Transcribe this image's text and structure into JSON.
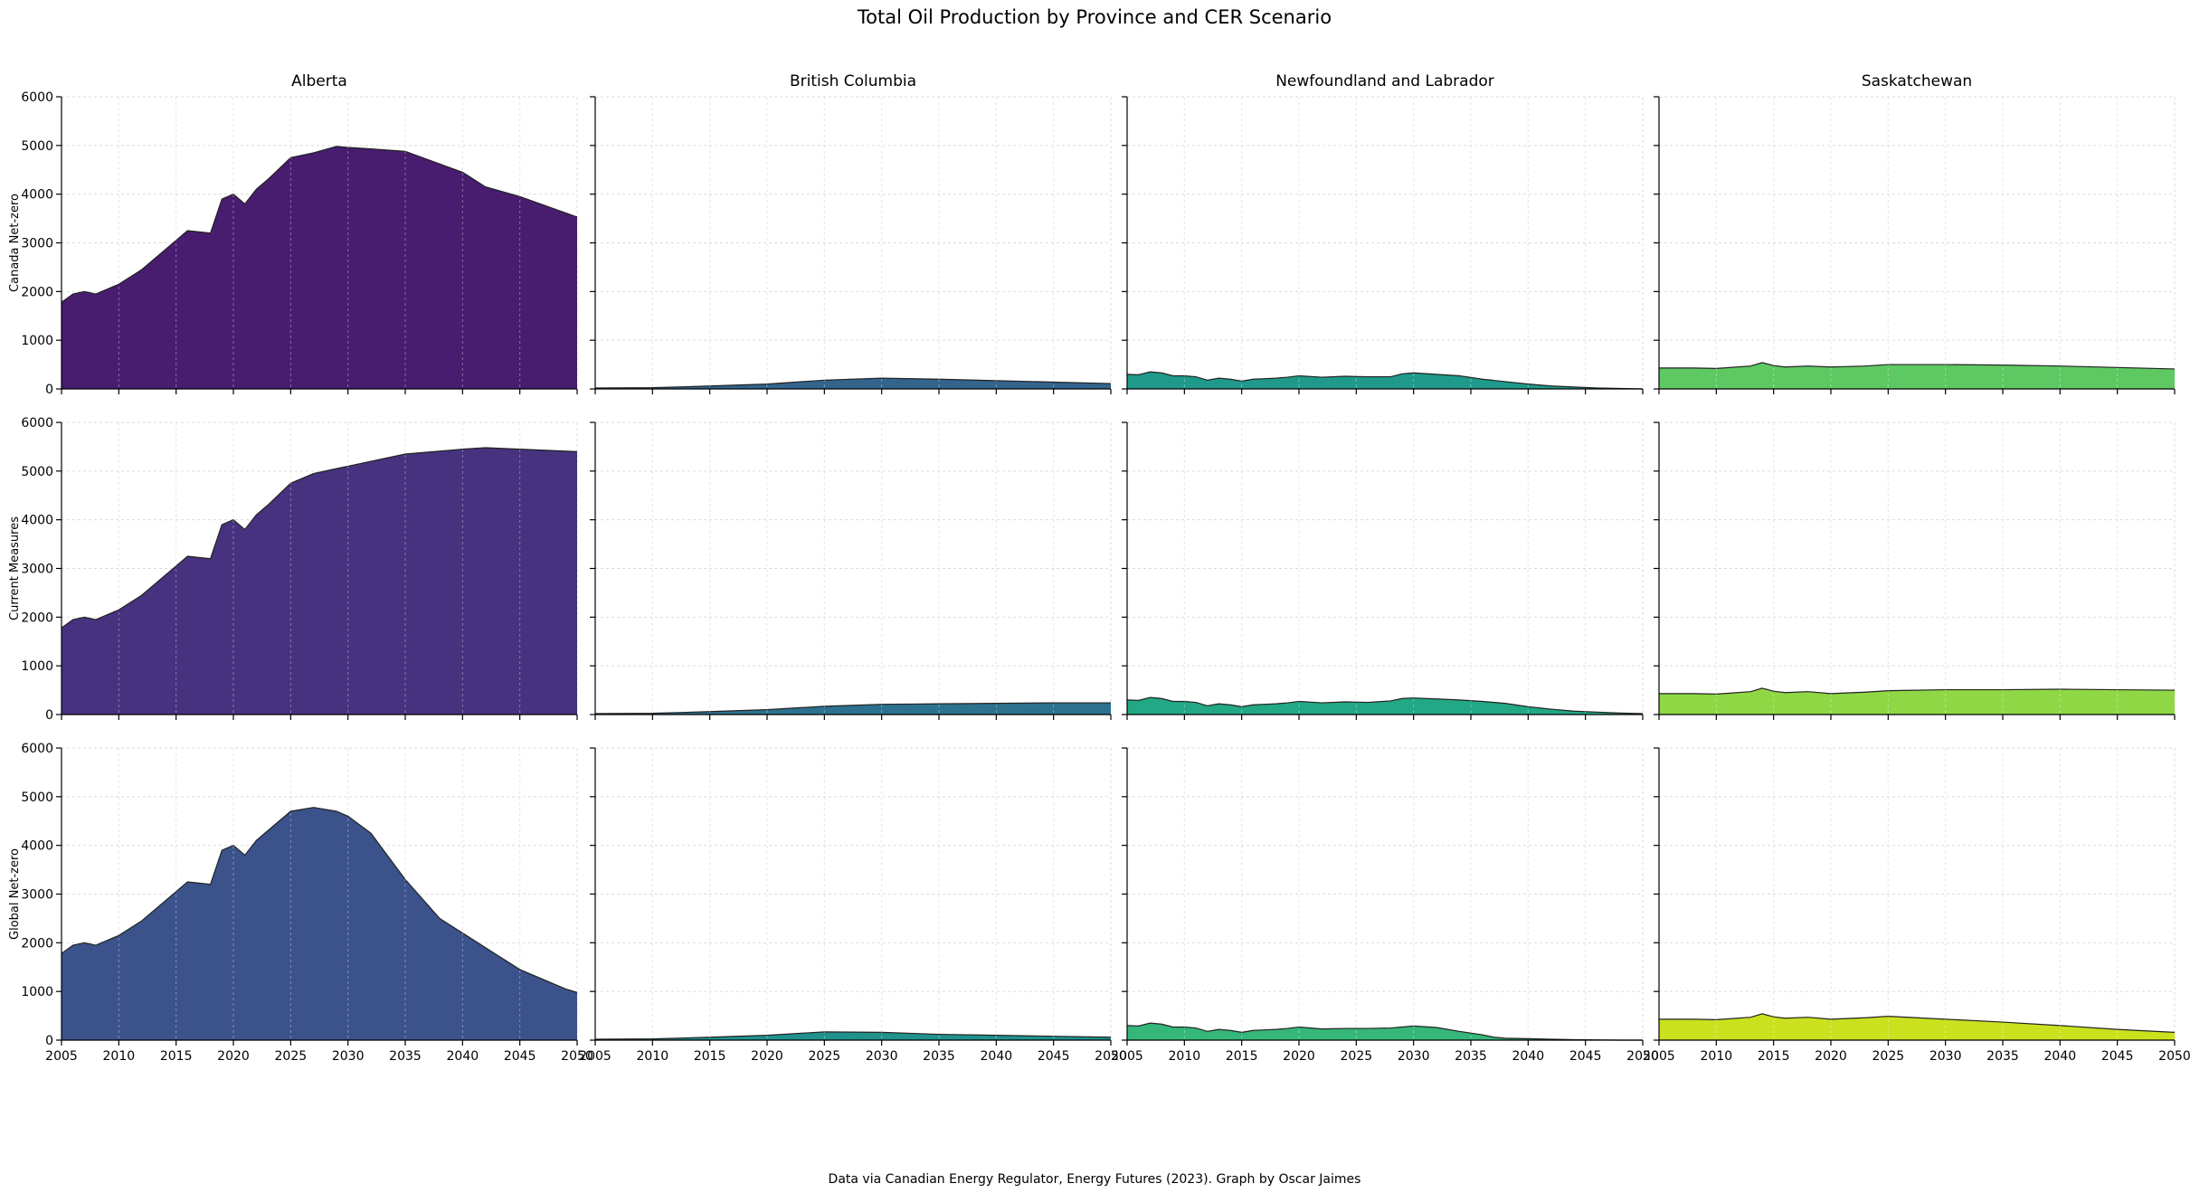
{
  "chart_data": {
    "type": "area",
    "title": "Total Oil Production by Province and CER Scenario",
    "footer": "Data via Canadian Energy Regulator, Energy Futures (2023). Graph by Oscar Jaimes",
    "columns": [
      "Alberta",
      "British Columbia",
      "Newfoundland and Labrador",
      "Saskatchewan"
    ],
    "rows": [
      "Canada Net-zero",
      "Current Measures",
      "Global Net-zero"
    ],
    "xlim": [
      2005,
      2050
    ],
    "ylim": [
      0,
      6000
    ],
    "x_ticks": [
      2005,
      2010,
      2015,
      2020,
      2025,
      2030,
      2035,
      2040,
      2045,
      2050
    ],
    "y_ticks": [
      0,
      1000,
      2000,
      3000,
      4000,
      5000,
      6000
    ],
    "grid": true,
    "colors": [
      [
        "#481c6e",
        "#32648e",
        "#1f9a8a",
        "#5ec962"
      ],
      [
        "#46327e",
        "#2c728e",
        "#22a884",
        "#8fd744"
      ],
      [
        "#3b528b",
        "#21918c",
        "#35b779",
        "#cae11f"
      ]
    ],
    "panels": [
      [
        {
          "x": [
            2005,
            2006,
            2007,
            2008,
            2010,
            2012,
            2013,
            2015,
            2016,
            2018,
            2019,
            2020,
            2021,
            2022,
            2023,
            2025,
            2027,
            2029,
            2030,
            2032,
            2035,
            2040,
            2042,
            2045,
            2050
          ],
          "y": [
            1780,
            1950,
            2000,
            1950,
            2150,
            2450,
            2650,
            3050,
            3250,
            3200,
            3900,
            4000,
            3800,
            4100,
            4300,
            4750,
            4850,
            4980,
            4960,
            4930,
            4880,
            4450,
            4150,
            3950,
            3530
          ]
        },
        {
          "x": [
            2005,
            2010,
            2015,
            2020,
            2025,
            2030,
            2035,
            2040,
            2045,
            2050
          ],
          "y": [
            20,
            25,
            60,
            100,
            180,
            220,
            200,
            170,
            140,
            110
          ]
        },
        {
          "x": [
            2005,
            2006,
            2007,
            2008,
            2009,
            2010,
            2011,
            2012,
            2013,
            2014,
            2015,
            2016,
            2017,
            2018,
            2019,
            2020,
            2022,
            2024,
            2026,
            2028,
            2029,
            2030,
            2032,
            2034,
            2036,
            2038,
            2040,
            2042,
            2044,
            2046,
            2048,
            2050
          ],
          "y": [
            300,
            290,
            350,
            330,
            270,
            270,
            250,
            180,
            220,
            200,
            160,
            200,
            210,
            220,
            240,
            270,
            240,
            260,
            250,
            250,
            310,
            330,
            300,
            270,
            200,
            150,
            100,
            60,
            40,
            20,
            10,
            0
          ]
        },
        {
          "x": [
            2005,
            2008,
            2010,
            2013,
            2014,
            2015,
            2016,
            2018,
            2020,
            2023,
            2025,
            2030,
            2035,
            2040,
            2045,
            2050
          ],
          "y": [
            430,
            430,
            420,
            470,
            540,
            480,
            450,
            470,
            450,
            470,
            500,
            500,
            490,
            470,
            440,
            410
          ]
        }
      ],
      [
        {
          "x": [
            2005,
            2006,
            2007,
            2008,
            2010,
            2012,
            2013,
            2015,
            2016,
            2018,
            2019,
            2020,
            2021,
            2022,
            2023,
            2025,
            2027,
            2029,
            2030,
            2032,
            2035,
            2040,
            2042,
            2045,
            2050
          ],
          "y": [
            1780,
            1950,
            2000,
            1950,
            2150,
            2450,
            2650,
            3050,
            3250,
            3200,
            3900,
            4000,
            3800,
            4100,
            4300,
            4750,
            4950,
            5050,
            5100,
            5200,
            5350,
            5450,
            5480,
            5450,
            5400
          ]
        },
        {
          "x": [
            2005,
            2010,
            2015,
            2020,
            2025,
            2030,
            2035,
            2040,
            2045,
            2050
          ],
          "y": [
            20,
            25,
            60,
            100,
            170,
            210,
            220,
            230,
            240,
            240
          ]
        },
        {
          "x": [
            2005,
            2006,
            2007,
            2008,
            2009,
            2010,
            2011,
            2012,
            2013,
            2014,
            2015,
            2016,
            2017,
            2018,
            2019,
            2020,
            2022,
            2024,
            2026,
            2028,
            2029,
            2030,
            2032,
            2034,
            2036,
            2038,
            2040,
            2042,
            2044,
            2046,
            2048,
            2050
          ],
          "y": [
            300,
            290,
            350,
            330,
            270,
            270,
            250,
            180,
            220,
            200,
            160,
            200,
            210,
            220,
            240,
            270,
            240,
            260,
            250,
            280,
            330,
            340,
            320,
            300,
            270,
            230,
            160,
            110,
            70,
            50,
            30,
            20
          ]
        },
        {
          "x": [
            2005,
            2008,
            2010,
            2013,
            2014,
            2015,
            2016,
            2018,
            2020,
            2023,
            2025,
            2030,
            2035,
            2040,
            2045,
            2050
          ],
          "y": [
            430,
            430,
            420,
            470,
            540,
            480,
            450,
            470,
            430,
            460,
            490,
            510,
            510,
            520,
            510,
            500
          ]
        }
      ],
      [
        {
          "x": [
            2005,
            2006,
            2007,
            2008,
            2010,
            2012,
            2013,
            2015,
            2016,
            2018,
            2019,
            2020,
            2021,
            2022,
            2023,
            2025,
            2027,
            2029,
            2030,
            2032,
            2035,
            2038,
            2040,
            2042,
            2045,
            2047,
            2049,
            2050
          ],
          "y": [
            1780,
            1950,
            2000,
            1950,
            2150,
            2450,
            2650,
            3050,
            3250,
            3200,
            3900,
            4000,
            3800,
            4100,
            4300,
            4700,
            4780,
            4700,
            4600,
            4250,
            3300,
            2500,
            2200,
            1900,
            1450,
            1250,
            1050,
            980
          ]
        },
        {
          "x": [
            2005,
            2010,
            2015,
            2020,
            2025,
            2030,
            2035,
            2040,
            2045,
            2050
          ],
          "y": [
            20,
            25,
            60,
            100,
            170,
            160,
            120,
            100,
            80,
            60
          ]
        },
        {
          "x": [
            2005,
            2006,
            2007,
            2008,
            2009,
            2010,
            2011,
            2012,
            2013,
            2014,
            2015,
            2016,
            2017,
            2018,
            2019,
            2020,
            2022,
            2024,
            2026,
            2028,
            2029,
            2030,
            2032,
            2034,
            2036,
            2037,
            2038,
            2040,
            2042,
            2044,
            2046,
            2048,
            2050
          ],
          "y": [
            300,
            290,
            350,
            330,
            270,
            270,
            250,
            180,
            220,
            200,
            160,
            200,
            210,
            220,
            240,
            270,
            230,
            240,
            240,
            250,
            270,
            290,
            260,
            180,
            110,
            60,
            40,
            30,
            20,
            10,
            5,
            0,
            0
          ]
        },
        {
          "x": [
            2005,
            2008,
            2010,
            2013,
            2014,
            2015,
            2016,
            2018,
            2020,
            2023,
            2025,
            2030,
            2035,
            2040,
            2045,
            2050
          ],
          "y": [
            430,
            430,
            420,
            470,
            540,
            480,
            450,
            470,
            430,
            460,
            490,
            430,
            370,
            300,
            220,
            160
          ]
        }
      ]
    ]
  }
}
